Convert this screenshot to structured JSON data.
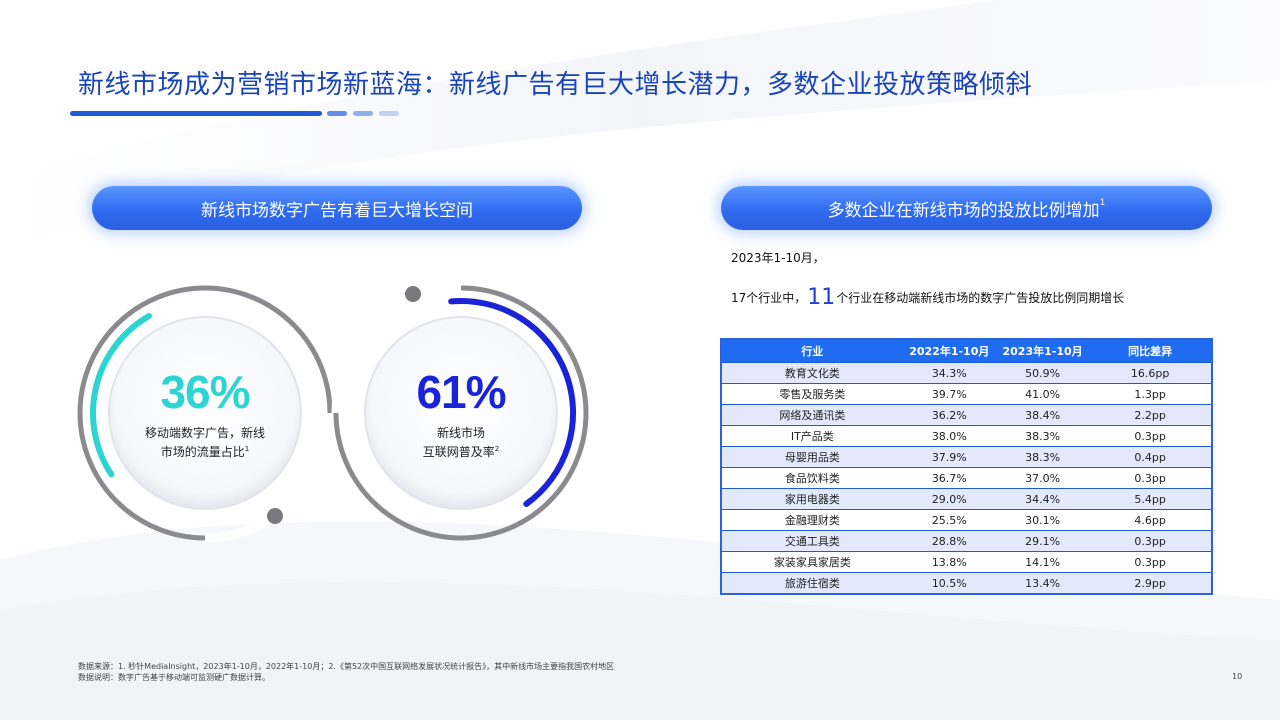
{
  "title": "新线市场成为营销市场新蓝海：新线广告有巨大增长潜力，多数企业投放策略倾斜",
  "left_panel": {
    "header": "新线市场数字广告有着巨大增长空间",
    "gauges": [
      {
        "value_text": "36%",
        "value": 36,
        "label_line1": "移动端数字广告，新线",
        "label_line2": "市场的流量占比",
        "footnote": "1",
        "color": "#2dd4d4"
      },
      {
        "value_text": "61%",
        "value": 61,
        "label_line1": "新线市场",
        "label_line2": "互联网普及率",
        "footnote": "2",
        "color": "#1a23d8"
      }
    ]
  },
  "right_panel": {
    "header": "多数企业在新线市场的投放比例增加",
    "header_footnote": "1",
    "intro_line1": "2023年1-10月，",
    "intro_prefix": "17个行业中，",
    "intro_highlight": "11",
    "intro_suffix": "个行业在移动端新线市场的数字广告投放比例同期增长",
    "table": {
      "headers": [
        "行业",
        "2022年1-10月",
        "2023年1-10月",
        "同比差异"
      ],
      "rows": [
        [
          "教育文化类",
          "34.3%",
          "50.9%",
          "16.6pp"
        ],
        [
          "零售及服务类",
          "39.7%",
          "41.0%",
          "1.3pp"
        ],
        [
          "网络及通讯类",
          "36.2%",
          "38.4%",
          "2.2pp"
        ],
        [
          "IT产品类",
          "38.0%",
          "38.3%",
          "0.3pp"
        ],
        [
          "母婴用品类",
          "37.9%",
          "38.3%",
          "0.4pp"
        ],
        [
          "食品饮料类",
          "36.7%",
          "37.0%",
          "0.3pp"
        ],
        [
          "家用电器类",
          "29.0%",
          "34.4%",
          "5.4pp"
        ],
        [
          "金融理财类",
          "25.5%",
          "30.1%",
          "4.6pp"
        ],
        [
          "交通工具类",
          "28.8%",
          "29.1%",
          "0.3pp"
        ],
        [
          "家装家具家居类",
          "13.8%",
          "14.1%",
          "0.3pp"
        ],
        [
          "旅游住宿类",
          "10.5%",
          "13.4%",
          "2.9pp"
        ]
      ]
    }
  },
  "footer": {
    "source": "数据来源：1. 秒针MediaInsight，2023年1-10月，2022年1-10月；2.《第52次中国互联网络发展状况统计报告》，其中新线市场主要指我国农村地区",
    "note": "数据说明：数字广告基于移动端可监测硬广数据计算。"
  },
  "page_number": "10",
  "colors": {
    "title": "#1a45b8",
    "accent": "#2f6cf0",
    "table_header": "#1f6cf0",
    "table_stripe": "#e3e9fb"
  }
}
